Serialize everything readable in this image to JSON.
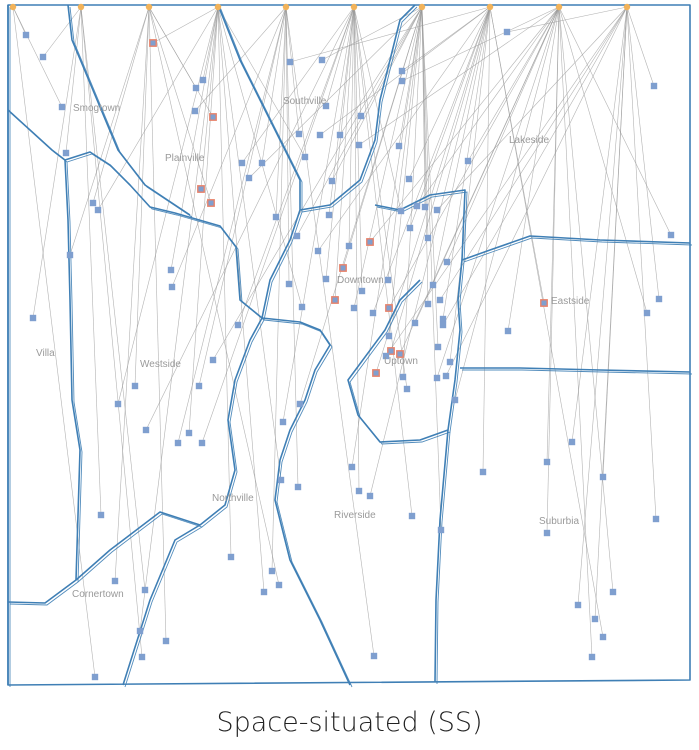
{
  "caption": "Space-situated (SS)",
  "colors": {
    "boundary": "#3f7fb5",
    "link": "#9a9a9a",
    "point": "#7f9fcf",
    "highlight_outline": "#e8826a",
    "anchor": "#f2b35a",
    "label": "#9a9a9a"
  },
  "regions": [
    {
      "name": "Smogtown"
    },
    {
      "name": "Southville"
    },
    {
      "name": "Plainville"
    },
    {
      "name": "Lakeside"
    },
    {
      "name": "Downtown"
    },
    {
      "name": "Eastside"
    },
    {
      "name": "Villa"
    },
    {
      "name": "Westside"
    },
    {
      "name": "Uptown"
    },
    {
      "name": "Northville"
    },
    {
      "name": "Riverside"
    },
    {
      "name": "Suburbia"
    },
    {
      "name": "Cornertown"
    }
  ]
}
